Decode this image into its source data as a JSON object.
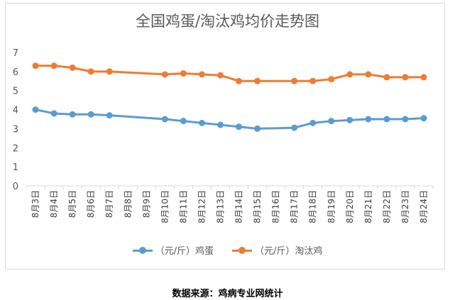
{
  "chart_data": {
    "type": "line",
    "title": "全国鸡蛋/淘汰鸡均价走势图",
    "categories": [
      "8月3日",
      "8月4日",
      "8月5日",
      "8月6日",
      "8月7日",
      "8月8日",
      "8月9日",
      "8月10日",
      "8月11日",
      "8月12日",
      "8月13日",
      "8月14日",
      "8月15日",
      "8月16日",
      "8月17日",
      "8月18日",
      "8月19日",
      "8月20日",
      "8月21日",
      "8月22日",
      "8月23日",
      "8月24日"
    ],
    "ylim": [
      0,
      7
    ],
    "yticks": [
      0,
      1,
      2,
      3,
      4,
      5,
      6,
      7
    ],
    "grid": false,
    "legend_position": "bottom",
    "series": [
      {
        "name": "（元/斤）鸡蛋",
        "color": "#5b9bd5",
        "values": [
          4.0,
          3.8,
          3.75,
          3.75,
          3.7,
          null,
          null,
          3.5,
          3.4,
          3.3,
          3.2,
          3.1,
          3.0,
          null,
          3.05,
          3.3,
          3.4,
          3.45,
          3.5,
          3.5,
          3.5,
          3.55
        ]
      },
      {
        "name": "（元/斤）淘汰鸡",
        "color": "#ed7d31",
        "values": [
          6.3,
          6.3,
          6.2,
          6.0,
          6.0,
          null,
          null,
          5.85,
          5.9,
          5.85,
          5.8,
          5.5,
          5.5,
          null,
          5.5,
          5.5,
          5.6,
          5.85,
          5.85,
          5.7,
          5.7,
          5.7
        ]
      }
    ]
  },
  "source_note": "数据来源：鸡病专业网统计"
}
